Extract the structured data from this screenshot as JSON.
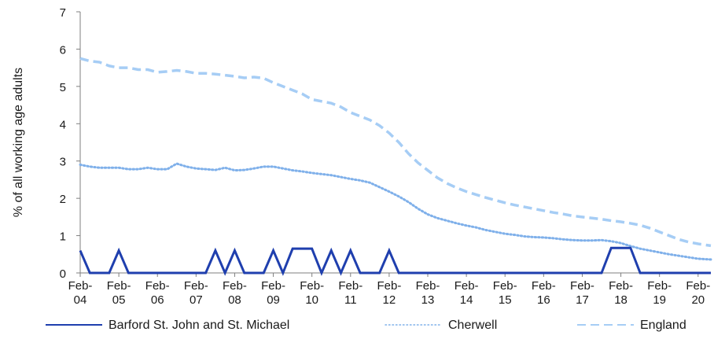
{
  "chart_data": {
    "type": "line",
    "ylabel": "% of all working age adults",
    "ylim": [
      0,
      7
    ],
    "yticks": [
      "0",
      "1",
      "2",
      "3",
      "4",
      "5",
      "6",
      "7"
    ],
    "xlim": [
      2004.0,
      2020.33
    ],
    "xticks": [
      {
        "pos": 2004.0,
        "l1": "Feb-",
        "l2": "04"
      },
      {
        "pos": 2005.0,
        "l1": "Feb-",
        "l2": "05"
      },
      {
        "pos": 2006.0,
        "l1": "Feb-",
        "l2": "06"
      },
      {
        "pos": 2007.0,
        "l1": "Feb-",
        "l2": "07"
      },
      {
        "pos": 2008.0,
        "l1": "Feb-",
        "l2": "08"
      },
      {
        "pos": 2009.0,
        "l1": "Feb-",
        "l2": "09"
      },
      {
        "pos": 2010.0,
        "l1": "Feb-",
        "l2": "10"
      },
      {
        "pos": 2011.0,
        "l1": "Feb-",
        "l2": "11"
      },
      {
        "pos": 2012.0,
        "l1": "Feb-",
        "l2": "12"
      },
      {
        "pos": 2013.0,
        "l1": "Feb-",
        "l2": "13"
      },
      {
        "pos": 2014.0,
        "l1": "Feb-",
        "l2": "14"
      },
      {
        "pos": 2015.0,
        "l1": "Feb-",
        "l2": "15"
      },
      {
        "pos": 2016.0,
        "l1": "Feb-",
        "l2": "16"
      },
      {
        "pos": 2017.0,
        "l1": "Feb-",
        "l2": "17"
      },
      {
        "pos": 2018.0,
        "l1": "Feb-",
        "l2": "18"
      },
      {
        "pos": 2019.0,
        "l1": "Feb-",
        "l2": "19"
      },
      {
        "pos": 2020.0,
        "l1": "Feb-",
        "l2": "20"
      }
    ],
    "legend_position": "bottom",
    "series": [
      {
        "name": "Barford St. John and St. Michael",
        "style": "solid",
        "color": "#1f3fae",
        "points": [
          [
            2004.0,
            0.6
          ],
          [
            2004.25,
            0
          ],
          [
            2004.75,
            0
          ],
          [
            2005.0,
            0.6
          ],
          [
            2005.25,
            0
          ],
          [
            2006.0,
            0
          ],
          [
            2007.0,
            0
          ],
          [
            2007.25,
            0
          ],
          [
            2007.5,
            0.6
          ],
          [
            2007.75,
            0
          ],
          [
            2008.0,
            0.6
          ],
          [
            2008.25,
            0
          ],
          [
            2008.75,
            0
          ],
          [
            2009.0,
            0.6
          ],
          [
            2009.25,
            0
          ],
          [
            2009.5,
            0.65
          ],
          [
            2009.75,
            0.65
          ],
          [
            2010.0,
            0.65
          ],
          [
            2010.25,
            0
          ],
          [
            2010.5,
            0.6
          ],
          [
            2010.75,
            0
          ],
          [
            2011.0,
            0.6
          ],
          [
            2011.25,
            0
          ],
          [
            2011.75,
            0
          ],
          [
            2012.0,
            0.6
          ],
          [
            2012.25,
            0
          ],
          [
            2013.0,
            0
          ],
          [
            2014.0,
            0
          ],
          [
            2015.0,
            0
          ],
          [
            2016.0,
            0
          ],
          [
            2017.0,
            0
          ],
          [
            2017.5,
            0
          ],
          [
            2017.75,
            0.67
          ],
          [
            2018.0,
            0.67
          ],
          [
            2018.25,
            0.67
          ],
          [
            2018.5,
            0
          ],
          [
            2019.0,
            0
          ],
          [
            2020.0,
            0
          ],
          [
            2020.33,
            0
          ]
        ]
      },
      {
        "name": "Cherwell",
        "style": "dotted",
        "color": "#7fb0ea",
        "points": [
          [
            2004.0,
            2.9
          ],
          [
            2004.25,
            2.85
          ],
          [
            2004.5,
            2.82
          ],
          [
            2004.75,
            2.82
          ],
          [
            2005.0,
            2.82
          ],
          [
            2005.25,
            2.78
          ],
          [
            2005.5,
            2.78
          ],
          [
            2005.75,
            2.82
          ],
          [
            2006.0,
            2.78
          ],
          [
            2006.25,
            2.78
          ],
          [
            2006.5,
            2.93
          ],
          [
            2006.75,
            2.85
          ],
          [
            2007.0,
            2.8
          ],
          [
            2007.25,
            2.78
          ],
          [
            2007.5,
            2.76
          ],
          [
            2007.75,
            2.82
          ],
          [
            2008.0,
            2.75
          ],
          [
            2008.25,
            2.76
          ],
          [
            2008.5,
            2.8
          ],
          [
            2008.75,
            2.85
          ],
          [
            2009.0,
            2.85
          ],
          [
            2009.25,
            2.8
          ],
          [
            2009.5,
            2.75
          ],
          [
            2009.75,
            2.72
          ],
          [
            2010.0,
            2.68
          ],
          [
            2010.25,
            2.65
          ],
          [
            2010.5,
            2.62
          ],
          [
            2010.75,
            2.57
          ],
          [
            2011.0,
            2.52
          ],
          [
            2011.25,
            2.48
          ],
          [
            2011.5,
            2.42
          ],
          [
            2011.75,
            2.3
          ],
          [
            2012.0,
            2.18
          ],
          [
            2012.25,
            2.05
          ],
          [
            2012.5,
            1.9
          ],
          [
            2012.75,
            1.72
          ],
          [
            2013.0,
            1.57
          ],
          [
            2013.25,
            1.47
          ],
          [
            2013.5,
            1.4
          ],
          [
            2013.75,
            1.33
          ],
          [
            2014.0,
            1.27
          ],
          [
            2014.25,
            1.22
          ],
          [
            2014.5,
            1.15
          ],
          [
            2014.75,
            1.1
          ],
          [
            2015.0,
            1.05
          ],
          [
            2015.25,
            1.02
          ],
          [
            2015.5,
            0.98
          ],
          [
            2015.75,
            0.96
          ],
          [
            2016.0,
            0.95
          ],
          [
            2016.25,
            0.93
          ],
          [
            2016.5,
            0.9
          ],
          [
            2016.75,
            0.88
          ],
          [
            2017.0,
            0.87
          ],
          [
            2017.25,
            0.87
          ],
          [
            2017.5,
            0.88
          ],
          [
            2017.75,
            0.85
          ],
          [
            2018.0,
            0.8
          ],
          [
            2018.25,
            0.72
          ],
          [
            2018.5,
            0.65
          ],
          [
            2018.75,
            0.6
          ],
          [
            2019.0,
            0.55
          ],
          [
            2019.25,
            0.5
          ],
          [
            2019.5,
            0.46
          ],
          [
            2019.75,
            0.42
          ],
          [
            2020.0,
            0.38
          ],
          [
            2020.33,
            0.36
          ]
        ]
      },
      {
        "name": "England",
        "style": "dashed",
        "color": "#a6cdf5",
        "points": [
          [
            2004.0,
            5.75
          ],
          [
            2004.25,
            5.68
          ],
          [
            2004.5,
            5.65
          ],
          [
            2004.75,
            5.55
          ],
          [
            2005.0,
            5.5
          ],
          [
            2005.25,
            5.5
          ],
          [
            2005.5,
            5.45
          ],
          [
            2005.75,
            5.45
          ],
          [
            2006.0,
            5.38
          ],
          [
            2006.25,
            5.4
          ],
          [
            2006.5,
            5.43
          ],
          [
            2006.75,
            5.4
          ],
          [
            2007.0,
            5.35
          ],
          [
            2007.25,
            5.35
          ],
          [
            2007.5,
            5.33
          ],
          [
            2007.75,
            5.3
          ],
          [
            2008.0,
            5.27
          ],
          [
            2008.25,
            5.23
          ],
          [
            2008.5,
            5.25
          ],
          [
            2008.75,
            5.22
          ],
          [
            2009.0,
            5.1
          ],
          [
            2009.25,
            5.0
          ],
          [
            2009.5,
            4.9
          ],
          [
            2009.75,
            4.8
          ],
          [
            2010.0,
            4.65
          ],
          [
            2010.25,
            4.6
          ],
          [
            2010.5,
            4.55
          ],
          [
            2010.75,
            4.45
          ],
          [
            2011.0,
            4.3
          ],
          [
            2011.25,
            4.2
          ],
          [
            2011.5,
            4.1
          ],
          [
            2011.75,
            3.95
          ],
          [
            2012.0,
            3.75
          ],
          [
            2012.25,
            3.5
          ],
          [
            2012.5,
            3.2
          ],
          [
            2012.75,
            2.95
          ],
          [
            2013.0,
            2.75
          ],
          [
            2013.25,
            2.55
          ],
          [
            2013.5,
            2.4
          ],
          [
            2013.75,
            2.28
          ],
          [
            2014.0,
            2.18
          ],
          [
            2014.25,
            2.1
          ],
          [
            2014.5,
            2.02
          ],
          [
            2014.75,
            1.95
          ],
          [
            2015.0,
            1.88
          ],
          [
            2015.25,
            1.82
          ],
          [
            2015.5,
            1.77
          ],
          [
            2015.75,
            1.72
          ],
          [
            2016.0,
            1.67
          ],
          [
            2016.25,
            1.62
          ],
          [
            2016.5,
            1.58
          ],
          [
            2016.75,
            1.53
          ],
          [
            2017.0,
            1.5
          ],
          [
            2017.25,
            1.47
          ],
          [
            2017.5,
            1.44
          ],
          [
            2017.75,
            1.4
          ],
          [
            2018.0,
            1.37
          ],
          [
            2018.25,
            1.33
          ],
          [
            2018.5,
            1.28
          ],
          [
            2018.75,
            1.2
          ],
          [
            2019.0,
            1.1
          ],
          [
            2019.25,
            1.0
          ],
          [
            2019.5,
            0.9
          ],
          [
            2019.75,
            0.83
          ],
          [
            2020.0,
            0.78
          ],
          [
            2020.33,
            0.73
          ]
        ]
      }
    ]
  }
}
